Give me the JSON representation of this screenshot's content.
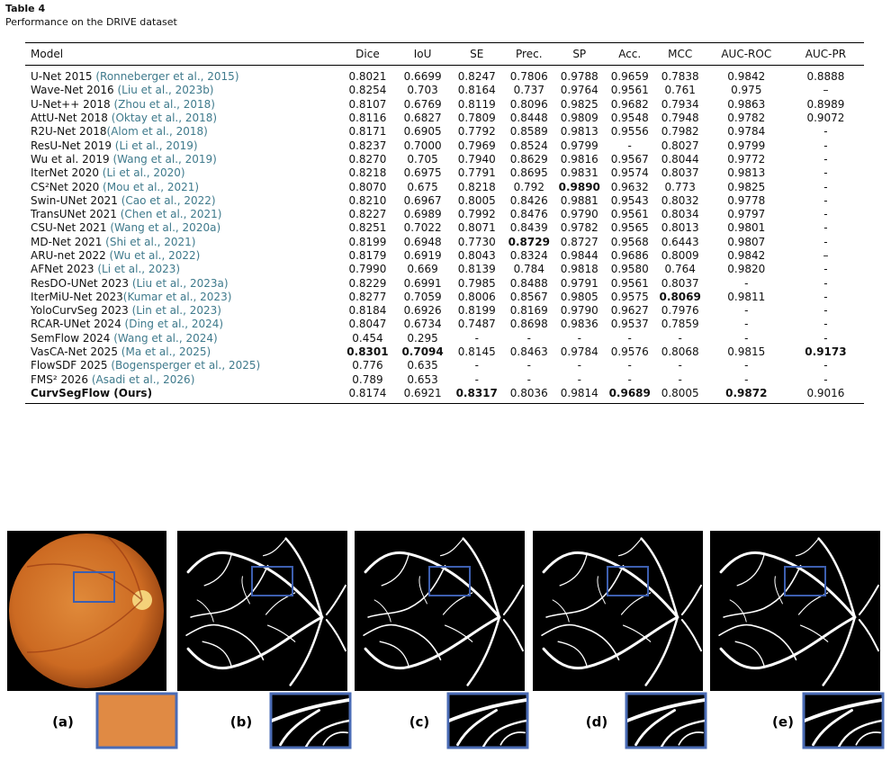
{
  "header": {
    "label": "Table 4",
    "caption": "Performance on the DRIVE dataset"
  },
  "table": {
    "columns": [
      "Model",
      "Dice",
      "IoU",
      "SE",
      "Prec.",
      "SP",
      "Acc.",
      "MCC",
      "AUC-ROC",
      "AUC-PR"
    ],
    "rows": [
      {
        "model": "U-Net 2015 ",
        "cite": "(Ronneberger et al., 2015)",
        "values": [
          "0.8021",
          "0.6699",
          "0.8247",
          "0.7806",
          "0.9788",
          "0.9659",
          "0.7838",
          "0.9842",
          "0.8888"
        ],
        "bold": []
      },
      {
        "model": "Wave-Net 2016 ",
        "cite": "(Liu et al., 2023b)",
        "values": [
          "0.8254",
          "0.703",
          "0.8164",
          "0.737",
          "0.9764",
          "0.9561",
          "0.761",
          "0.975",
          "–"
        ],
        "bold": []
      },
      {
        "model": "U-Net++ 2018 ",
        "cite": "(Zhou et al., 2018)",
        "values": [
          "0.8107",
          "0.6769",
          "0.8119",
          "0.8096",
          "0.9825",
          "0.9682",
          "0.7934",
          "0.9863",
          "0.8989"
        ],
        "bold": []
      },
      {
        "model": "AttU-Net 2018 ",
        "cite": "(Oktay et al., 2018)",
        "values": [
          "0.8116",
          "0.6827",
          "0.7809",
          "0.8448",
          "0.9809",
          "0.9548",
          "0.7948",
          "0.9782",
          "0.9072"
        ],
        "bold": []
      },
      {
        "model": "R2U-Net 2018",
        "cite": "(Alom et al., 2018)",
        "values": [
          "0.8171",
          "0.6905",
          "0.7792",
          "0.8589",
          "0.9813",
          "0.9556",
          "0.7982",
          "0.9784",
          "-"
        ],
        "bold": []
      },
      {
        "model": "ResU-Net 2019 ",
        "cite": "(Li et al., 2019)",
        "values": [
          "0.8237",
          "0.7000",
          "0.7969",
          "0.8524",
          "0.9799",
          "-",
          "0.8027",
          "0.9799",
          "-"
        ],
        "bold": []
      },
      {
        "model": "Wu et al. 2019 ",
        "cite": "(Wang et al., 2019)",
        "values": [
          "0.8270",
          "0.705",
          "0.7940",
          "0.8629",
          "0.9816",
          "0.9567",
          "0.8044",
          "0.9772",
          "-"
        ],
        "bold": []
      },
      {
        "model": "IterNet 2020 ",
        "cite": "(Li et al., 2020)",
        "values": [
          "0.8218",
          "0.6975",
          "0.7791",
          "0.8695",
          "0.9831",
          "0.9574",
          "0.8037",
          "0.9813",
          "-"
        ],
        "bold": []
      },
      {
        "model": "CS²Net 2020 ",
        "cite": "(Mou et al., 2021)",
        "values": [
          "0.8070",
          "0.675",
          "0.8218",
          "0.792",
          "0.9890",
          "0.9632",
          "0.773",
          "0.9825",
          "-"
        ],
        "bold": [
          4
        ]
      },
      {
        "model": "Swin-UNet 2021 ",
        "cite": "(Cao et al., 2022)",
        "values": [
          "0.8210",
          "0.6967",
          "0.8005",
          "0.8426",
          "0.9881",
          "0.9543",
          "0.8032",
          "0.9778",
          "-"
        ],
        "bold": []
      },
      {
        "model": "TransUNet 2021 ",
        "cite": "(Chen et al., 2021)",
        "values": [
          "0.8227",
          "0.6989",
          "0.7992",
          "0.8476",
          "0.9790",
          "0.9561",
          "0.8034",
          "0.9797",
          "-"
        ],
        "bold": []
      },
      {
        "model": "CSU-Net 2021 ",
        "cite": "(Wang et al., 2020a)",
        "values": [
          "0.8251",
          "0.7022",
          "0.8071",
          "0.8439",
          "0.9782",
          "0.9565",
          "0.8013",
          "0.9801",
          "-"
        ],
        "bold": []
      },
      {
        "model": "MD-Net 2021 ",
        "cite": "(Shi et al., 2021)",
        "values": [
          "0.8199",
          "0.6948",
          "0.7730",
          "0.8729",
          "0.8727",
          "0.9568",
          "0.6443",
          "0.9807",
          "-"
        ],
        "bold": [
          3
        ]
      },
      {
        "model": "ARU-net 2022 ",
        "cite": "(Wu et al., 2022)",
        "values": [
          "0.8179",
          "0.6919",
          "0.8043",
          "0.8324",
          "0.9844",
          "0.9686",
          "0.8009",
          "0.9842",
          "–"
        ],
        "bold": []
      },
      {
        "model": "AFNet 2023 ",
        "cite": "(Li et al., 2023)",
        "values": [
          "0.7990",
          "0.669",
          "0.8139",
          "0.784",
          "0.9818",
          "0.9580",
          "0.764",
          "0.9820",
          "-"
        ],
        "bold": []
      },
      {
        "model": "ResDO-UNet 2023 ",
        "cite": "(Liu et al., 2023a)",
        "values": [
          "0.8229",
          "0.6991",
          "0.7985",
          "0.8488",
          "0.9791",
          "0.9561",
          "0.8037",
          "-",
          "-"
        ],
        "bold": []
      },
      {
        "model": "IterMiU-Net 2023",
        "cite": "(Kumar et al., 2023)",
        "values": [
          "0.8277",
          "0.7059",
          "0.8006",
          "0.8567",
          "0.9805",
          "0.9575",
          "0.8069",
          "0.9811",
          "-"
        ],
        "bold": [
          6
        ]
      },
      {
        "model": "YoloCurvSeg 2023 ",
        "cite": "(Lin et al., 2023)",
        "values": [
          "0.8184",
          "0.6926",
          "0.8199",
          "0.8169",
          "0.9790",
          "0.9627",
          "0.7976",
          "-",
          "-"
        ],
        "bold": []
      },
      {
        "model": "RCAR-UNet 2024 ",
        "cite": "(Ding et al., 2024)",
        "values": [
          "0.8047",
          "0.6734",
          "0.7487",
          "0.8698",
          "0.9836",
          "0.9537",
          "0.7859",
          "-",
          "-"
        ],
        "bold": []
      },
      {
        "model": "SemFlow 2024 ",
        "cite": "(Wang et al., 2024)",
        "values": [
          "0.454",
          "0.295",
          "-",
          "-",
          "-",
          "-",
          "-",
          "-",
          "-"
        ],
        "bold": []
      },
      {
        "model": "VasCA-Net 2025 ",
        "cite": "(Ma et al., 2025)",
        "values": [
          "0.8301",
          "0.7094",
          "0.8145",
          "0.8463",
          "0.9784",
          "0.9576",
          "0.8068",
          "0.9815",
          "0.9173"
        ],
        "bold": [
          0,
          1,
          8
        ]
      },
      {
        "model": "FlowSDF 2025 ",
        "cite": "(Bogensperger et al., 2025)",
        "values": [
          "0.776",
          "0.635",
          "-",
          "-",
          "-",
          "-",
          "-",
          "-",
          "-"
        ],
        "bold": []
      },
      {
        "model": "FMS² 2026 ",
        "cite": "(Asadi et al., 2026)",
        "values": [
          "0.789",
          "0.653",
          "-",
          "-",
          "-",
          "-",
          "-",
          "-",
          "-"
        ],
        "bold": []
      },
      {
        "model": "CurvSegFlow (Ours)",
        "values": [
          "0.8174",
          "0.6921",
          "0.8317",
          "0.8036",
          "0.9814",
          "0.9689",
          "0.8005",
          "0.9872",
          "0.9016"
        ],
        "bold": [
          2,
          5,
          7
        ],
        "bold_model": true
      }
    ]
  },
  "figure": {
    "panels": [
      "(a)",
      "(b)",
      "(c)",
      "(d)",
      "(e)"
    ]
  }
}
